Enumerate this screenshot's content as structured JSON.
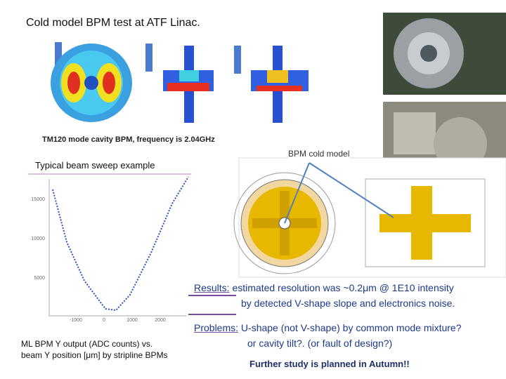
{
  "slide": {
    "title": "Cold model BPM test at ATF Linac.",
    "simulation_caption": "TM120 mode cavity BPM,  frequency is 2.04GHz",
    "plot_caption": "Typical beam sweep example",
    "drawing_label": "BPM cold model",
    "plot": {
      "y_ticks": [
        "15000",
        "10000",
        "5000"
      ],
      "x_ticks": [
        "-1000",
        "0",
        "1000",
        "2000"
      ]
    },
    "plot_description": [
      "ML BPM Y output (ADC counts) vs.",
      "beam Y position [μm] by stripline BPMs"
    ],
    "results": {
      "label": "Results:",
      "lines": [
        "estimated resolution was ~0.2μm @ 1E10 intensity",
        "by detected V-shape slope and electronics noise."
      ]
    },
    "problems": {
      "label": "Problems:",
      "lines": [
        "U-shape (not V-shape) by common mode mixture?",
        "or cavity tilt?. (or fault of design?)"
      ]
    },
    "conclusion": "Further study is planned in Autumn!!"
  }
}
